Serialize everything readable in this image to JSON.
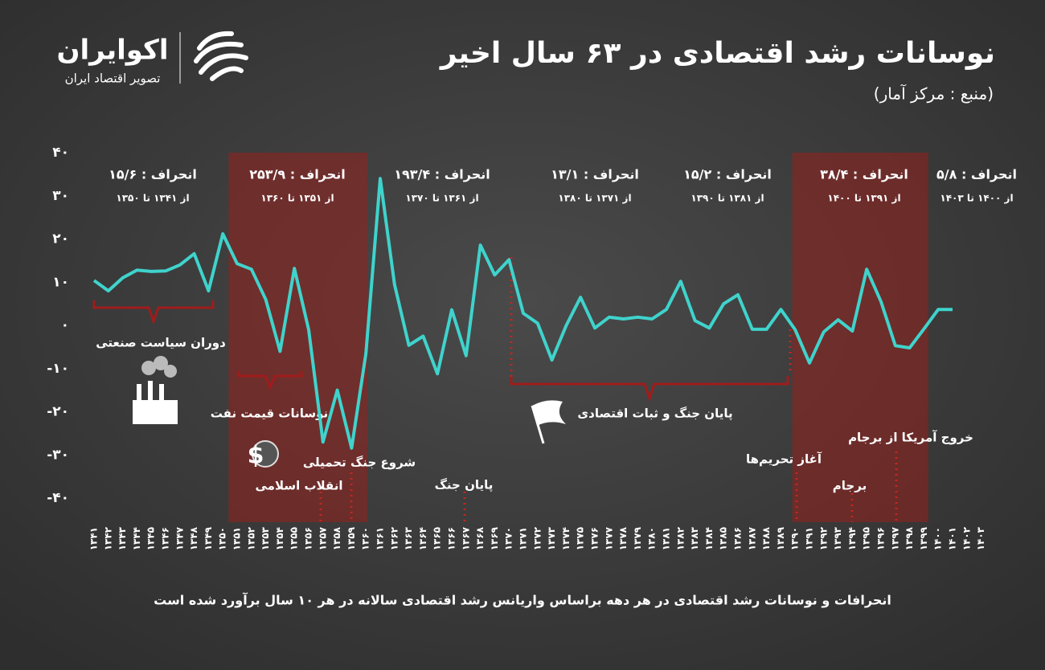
{
  "chart_data": {
    "type": "line",
    "title": "نوسانات رشد اقتصادی در ۶۳ سال اخیر",
    "subtitle": "(منبع : مرکز آمار)",
    "brand": {
      "name": "اکوایران",
      "tagline": "تصویر اقتصاد ایران"
    },
    "note": "انحرافات و نوسانات رشد اقتصادی در هر دهه براساس واریانس رشد اقتصادی سالانه در هر ۱۰ سال برآورد شده است",
    "categories": [
      "۱۳۴۱",
      "۱۳۴۲",
      "۱۳۴۳",
      "۱۳۴۴",
      "۱۳۴۵",
      "۱۳۴۶",
      "۱۳۴۷",
      "۱۳۴۸",
      "۱۳۴۹",
      "۱۳۵۰",
      "۱۳۵۱",
      "۱۳۵۲",
      "۱۳۵۳",
      "۱۳۵۴",
      "۱۳۵۵",
      "۱۳۵۶",
      "۱۳۵۷",
      "۱۳۵۸",
      "۱۳۵۹",
      "۱۳۶۰",
      "۱۳۶۱",
      "۱۳۶۲",
      "۱۳۶۳",
      "۱۳۶۴",
      "۱۳۶۵",
      "۱۳۶۶",
      "۱۳۶۷",
      "۱۳۶۸",
      "۱۳۶۹",
      "۱۳۷۰",
      "۱۳۷۱",
      "۱۳۷۲",
      "۱۳۷۳",
      "۱۳۷۴",
      "۱۳۷۵",
      "۱۳۷۶",
      "۱۳۷۷",
      "۱۳۷۸",
      "۱۳۷۹",
      "۱۳۸۰",
      "۱۳۸۱",
      "۱۳۸۲",
      "۱۳۸۳",
      "۱۳۸۴",
      "۱۳۸۵",
      "۱۳۸۶",
      "۱۳۸۷",
      "۱۳۸۸",
      "۱۳۸۹",
      "۱۳۹۰",
      "۱۳۹۱",
      "۱۳۹۲",
      "۱۳۹۳",
      "۱۳۹۴",
      "۱۳۹۵",
      "۱۳۹۶",
      "۱۳۹۷",
      "۱۳۹۸",
      "۱۳۹۹",
      "۱۴۰۰",
      "۱۴۰۱",
      "۱۴۰۲",
      "۱۴۰۳"
    ],
    "series": [
      {
        "color": "#3fd3cc",
        "values": [
          10.4,
          8,
          11,
          12.8,
          12.5,
          12.6,
          14,
          16.6,
          8,
          21.2,
          14.3,
          13,
          6,
          -6,
          13.2,
          -1,
          -27,
          -15,
          -28.4,
          -6.5,
          34,
          9.5,
          -4.6,
          -2.5,
          -11.2,
          3.6,
          -7,
          18.6,
          11.7,
          15.2,
          2.8,
          0.5,
          -8,
          0,
          6.5,
          -0.6,
          1.9,
          1.5,
          1.9,
          1.5,
          3.7,
          10.2,
          1.1,
          -0.6,
          5,
          7.1,
          -0.9,
          -0.9,
          3.7,
          -1,
          -8.7,
          -1.5,
          1.3,
          -1.3,
          13,
          5.5,
          -4.7,
          -5.2,
          -0.8,
          3.7,
          3.7,
          null,
          null
        ]
      }
    ],
    "ylim": [
      -45,
      40
    ],
    "yticks": [
      {
        "value": 40,
        "label": "۴۰"
      },
      {
        "value": 30,
        "label": "۳۰"
      },
      {
        "value": 20,
        "label": "۲۰"
      },
      {
        "value": 10,
        "label": "۱۰"
      },
      {
        "value": 0,
        "label": "۰"
      },
      {
        "value": -10,
        "label": "-۱۰"
      },
      {
        "value": -20,
        "label": "-۲۰"
      },
      {
        "value": -30,
        "label": "-۳۰"
      },
      {
        "value": -40,
        "label": "-۴۰"
      }
    ],
    "periods": [
      {
        "label": "انحراف : ۱۵/۶",
        "range": "از ۱۳۴۱ تا ۱۳۵۰"
      },
      {
        "label": "انحراف : ۲۵۳/۹",
        "range": "از ۱۳۵۱ تا ۱۳۶۰"
      },
      {
        "label": "انحراف : ۱۹۳/۴",
        "range": "از ۱۳۶۱ تا ۱۳۷۰"
      },
      {
        "label": "انحراف : ۱۳/۱",
        "range": "از ۱۳۷۱ تا ۱۳۸۰"
      },
      {
        "label": "انحراف : ۱۵/۲",
        "range": "از ۱۳۸۱ تا ۱۳۹۰"
      },
      {
        "label": "انحراف : ۳۸/۴",
        "range": "از ۱۳۹۱ تا ۱۴۰۰"
      },
      {
        "label": "انحراف : ۵/۸",
        "range": "از ۱۴۰۰ تا ۱۴۰۳"
      }
    ],
    "annotations": [
      "دوران سیاست صنعتی",
      "نوسانات قیمت نفت",
      "انقلاب اسلامی",
      "شروع جنگ تحمیلی",
      "پایان جنگ",
      "پایان جنگ و ثبات اقتصادی",
      "آغاز تحریم‌ها",
      "برجام",
      "خروج آمریکا از برجام"
    ]
  }
}
